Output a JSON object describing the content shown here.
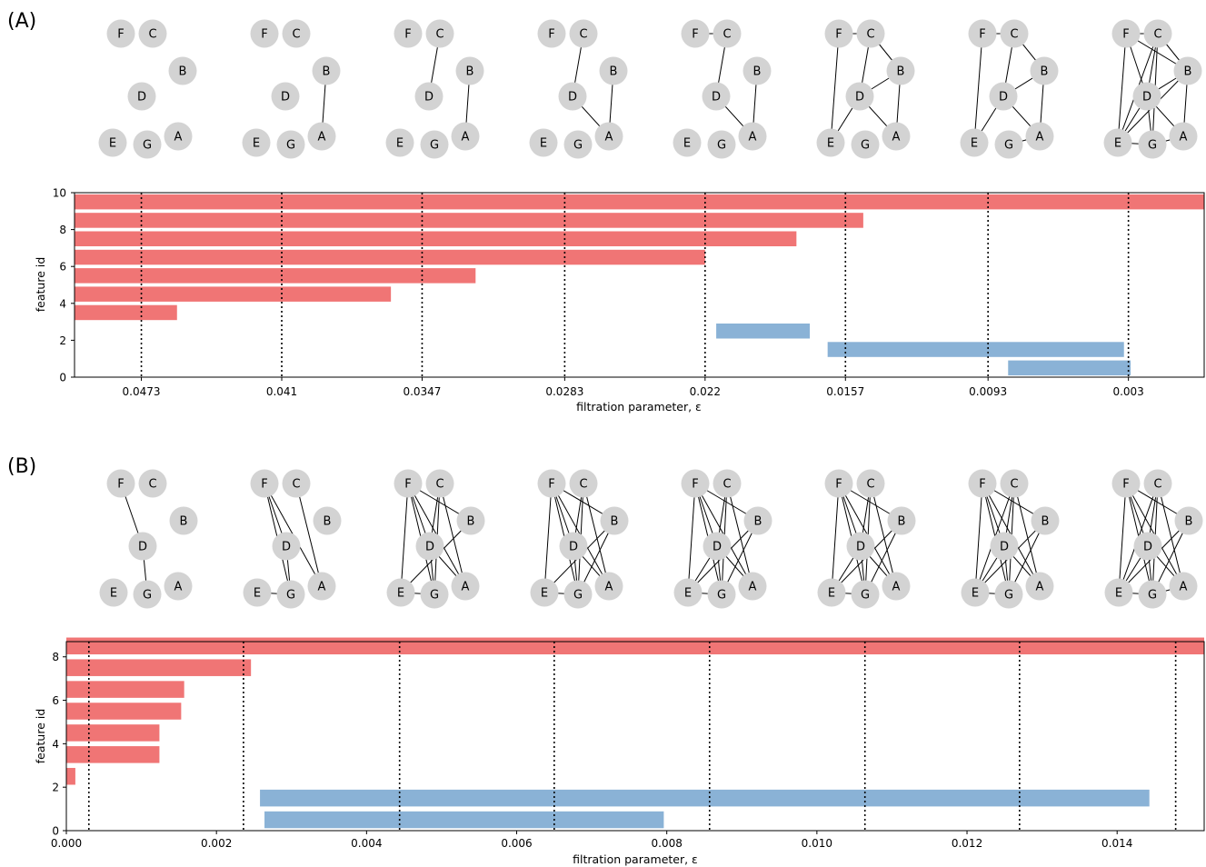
{
  "colors": {
    "h0": "#f07575",
    "h1": "#8ab2d6",
    "node": "#d3d3d3"
  },
  "chart_data": [
    {
      "panel": "(A)",
      "type": "bar",
      "orientation": "horizontal",
      "xlabel": "filtration parameter, ε",
      "ylabel": "feature id",
      "x_ticks": [
        {
          "pos": 0.0473,
          "label": "0.0473"
        },
        {
          "pos": 0.041,
          "label": "0.041"
        },
        {
          "pos": 0.0347,
          "label": "0.0347"
        },
        {
          "pos": 0.0283,
          "label": "0.0283"
        },
        {
          "pos": 0.022,
          "label": "0.022"
        },
        {
          "pos": 0.0157,
          "label": "0.0157"
        },
        {
          "pos": 0.0093,
          "label": "0.0093"
        },
        {
          "pos": 0.003,
          "label": "0.003"
        }
      ],
      "xlim": [
        0.0503,
        -0.0004
      ],
      "ylim": [
        0,
        10
      ],
      "y_ticks": [
        0,
        2,
        4,
        6,
        8,
        10
      ],
      "grid": false,
      "vlines": [
        0.0473,
        0.041,
        0.0347,
        0.0283,
        0.022,
        0.0157,
        0.0093,
        0.003
      ],
      "bars": [
        {
          "id": 9,
          "start": 0.0503,
          "end": -0.0004,
          "dim": 0
        },
        {
          "id": 8,
          "start": 0.0503,
          "end": 0.0149,
          "dim": 0
        },
        {
          "id": 7,
          "start": 0.0503,
          "end": 0.0179,
          "dim": 0
        },
        {
          "id": 6,
          "start": 0.0503,
          "end": 0.022,
          "dim": 0
        },
        {
          "id": 5,
          "start": 0.0503,
          "end": 0.0323,
          "dim": 0
        },
        {
          "id": 4,
          "start": 0.0503,
          "end": 0.0361,
          "dim": 0
        },
        {
          "id": 3,
          "start": 0.0503,
          "end": 0.0457,
          "dim": 0
        },
        {
          "id": 2,
          "start": 0.0215,
          "end": 0.0173,
          "dim": 1
        },
        {
          "id": 1,
          "start": 0.0165,
          "end": 0.0032,
          "dim": 1
        },
        {
          "id": 0,
          "start": 0.0084,
          "end": 0.0029,
          "dim": 1
        }
      ],
      "graphs": [
        {
          "edges": []
        },
        {
          "edges": [
            [
              "B",
              "A"
            ]
          ]
        },
        {
          "edges": [
            [
              "C",
              "D"
            ],
            [
              "B",
              "A"
            ]
          ]
        },
        {
          "edges": [
            [
              "C",
              "D"
            ],
            [
              "B",
              "A"
            ],
            [
              "D",
              "A"
            ]
          ]
        },
        {
          "edges": [
            [
              "F",
              "C"
            ],
            [
              "C",
              "D"
            ],
            [
              "B",
              "A"
            ],
            [
              "D",
              "A"
            ]
          ]
        },
        {
          "edges": [
            [
              "F",
              "C"
            ],
            [
              "C",
              "D"
            ],
            [
              "B",
              "A"
            ],
            [
              "D",
              "A"
            ],
            [
              "F",
              "E"
            ],
            [
              "D",
              "E"
            ],
            [
              "C",
              "B"
            ],
            [
              "D",
              "B"
            ]
          ]
        },
        {
          "edges": [
            [
              "F",
              "C"
            ],
            [
              "C",
              "D"
            ],
            [
              "B",
              "A"
            ],
            [
              "D",
              "A"
            ],
            [
              "F",
              "E"
            ],
            [
              "D",
              "E"
            ],
            [
              "C",
              "B"
            ],
            [
              "D",
              "B"
            ],
            [
              "G",
              "A"
            ]
          ]
        },
        {
          "edges": [
            [
              "F",
              "C"
            ],
            [
              "C",
              "D"
            ],
            [
              "B",
              "A"
            ],
            [
              "D",
              "A"
            ],
            [
              "F",
              "E"
            ],
            [
              "D",
              "E"
            ],
            [
              "C",
              "B"
            ],
            [
              "D",
              "B"
            ],
            [
              "G",
              "A"
            ],
            [
              "E",
              "G"
            ],
            [
              "F",
              "B"
            ],
            [
              "C",
              "E"
            ],
            [
              "C",
              "G"
            ],
            [
              "F",
              "D"
            ],
            [
              "E",
              "B"
            ],
            [
              "D",
              "G"
            ]
          ]
        }
      ]
    },
    {
      "panel": "(B)",
      "type": "bar",
      "orientation": "horizontal",
      "xlabel": "filtration parameter, ε",
      "ylabel": "feature id",
      "x_ticks": [
        {
          "pos": 0.0,
          "label": "0.000"
        },
        {
          "pos": 0.002,
          "label": "0.002"
        },
        {
          "pos": 0.004,
          "label": "0.004"
        },
        {
          "pos": 0.006,
          "label": "0.006"
        },
        {
          "pos": 0.008,
          "label": "0.008"
        },
        {
          "pos": 0.01,
          "label": "0.010"
        },
        {
          "pos": 0.012,
          "label": "0.012"
        },
        {
          "pos": 0.014,
          "label": "0.014"
        }
      ],
      "xlim": [
        0,
        0.01516
      ],
      "ylim": [
        0,
        8.7
      ],
      "y_ticks": [
        0,
        2,
        4,
        6,
        8
      ],
      "grid": false,
      "vlines": [
        0.0003,
        0.00236,
        0.00444,
        0.0065,
        0.00857,
        0.01064,
        0.0127,
        0.01478
      ],
      "bars": [
        {
          "id": 8,
          "start": 0,
          "end": 0.01516,
          "dim": 0
        },
        {
          "id": 7,
          "start": 0,
          "end": 0.00246,
          "dim": 0
        },
        {
          "id": 6,
          "start": 0,
          "end": 0.00157,
          "dim": 0
        },
        {
          "id": 5,
          "start": 0,
          "end": 0.00153,
          "dim": 0
        },
        {
          "id": 4,
          "start": 0,
          "end": 0.00124,
          "dim": 0
        },
        {
          "id": 3,
          "start": 0,
          "end": 0.00124,
          "dim": 0
        },
        {
          "id": 2,
          "start": 0,
          "end": 0.00012,
          "dim": 0
        },
        {
          "id": 1,
          "start": 0.00258,
          "end": 0.01443,
          "dim": 1
        },
        {
          "id": 0,
          "start": 0.00264,
          "end": 0.00796,
          "dim": 1
        }
      ],
      "graphs": [
        {
          "edges": [
            [
              "F",
              "D"
            ],
            [
              "D",
              "G"
            ]
          ]
        },
        {
          "edges": [
            [
              "F",
              "D"
            ],
            [
              "D",
              "G"
            ],
            [
              "F",
              "G"
            ],
            [
              "C",
              "A"
            ],
            [
              "E",
              "G"
            ],
            [
              "F",
              "A"
            ]
          ]
        },
        {
          "edges": [
            [
              "F",
              "D"
            ],
            [
              "D",
              "G"
            ],
            [
              "F",
              "G"
            ],
            [
              "C",
              "A"
            ],
            [
              "E",
              "G"
            ],
            [
              "F",
              "A"
            ],
            [
              "C",
              "D"
            ],
            [
              "F",
              "B"
            ],
            [
              "C",
              "G"
            ],
            [
              "E",
              "B"
            ],
            [
              "D",
              "A"
            ],
            [
              "F",
              "E"
            ]
          ]
        },
        {
          "edges": [
            [
              "F",
              "D"
            ],
            [
              "D",
              "G"
            ],
            [
              "F",
              "G"
            ],
            [
              "C",
              "A"
            ],
            [
              "E",
              "G"
            ],
            [
              "F",
              "A"
            ],
            [
              "C",
              "D"
            ],
            [
              "F",
              "B"
            ],
            [
              "C",
              "G"
            ],
            [
              "E",
              "B"
            ],
            [
              "D",
              "A"
            ],
            [
              "F",
              "E"
            ],
            [
              "G",
              "B"
            ]
          ]
        },
        {
          "edges": [
            [
              "F",
              "D"
            ],
            [
              "D",
              "G"
            ],
            [
              "F",
              "G"
            ],
            [
              "C",
              "A"
            ],
            [
              "E",
              "G"
            ],
            [
              "F",
              "A"
            ],
            [
              "C",
              "D"
            ],
            [
              "F",
              "B"
            ],
            [
              "C",
              "G"
            ],
            [
              "E",
              "B"
            ],
            [
              "D",
              "A"
            ],
            [
              "F",
              "E"
            ],
            [
              "G",
              "B"
            ],
            [
              "D",
              "E"
            ]
          ]
        },
        {
          "edges": [
            [
              "F",
              "D"
            ],
            [
              "D",
              "G"
            ],
            [
              "F",
              "G"
            ],
            [
              "C",
              "A"
            ],
            [
              "E",
              "G"
            ],
            [
              "F",
              "A"
            ],
            [
              "C",
              "D"
            ],
            [
              "F",
              "B"
            ],
            [
              "C",
              "G"
            ],
            [
              "E",
              "B"
            ],
            [
              "D",
              "A"
            ],
            [
              "F",
              "E"
            ],
            [
              "G",
              "B"
            ],
            [
              "D",
              "E"
            ]
          ]
        },
        {
          "edges": [
            [
              "F",
              "D"
            ],
            [
              "D",
              "G"
            ],
            [
              "F",
              "G"
            ],
            [
              "C",
              "A"
            ],
            [
              "E",
              "G"
            ],
            [
              "F",
              "A"
            ],
            [
              "C",
              "D"
            ],
            [
              "F",
              "B"
            ],
            [
              "C",
              "G"
            ],
            [
              "E",
              "B"
            ],
            [
              "D",
              "A"
            ],
            [
              "F",
              "E"
            ],
            [
              "G",
              "B"
            ],
            [
              "D",
              "E"
            ],
            [
              "C",
              "E"
            ]
          ]
        },
        {
          "edges": [
            [
              "F",
              "D"
            ],
            [
              "D",
              "G"
            ],
            [
              "F",
              "G"
            ],
            [
              "C",
              "A"
            ],
            [
              "E",
              "G"
            ],
            [
              "F",
              "A"
            ],
            [
              "C",
              "D"
            ],
            [
              "F",
              "B"
            ],
            [
              "C",
              "G"
            ],
            [
              "E",
              "B"
            ],
            [
              "D",
              "A"
            ],
            [
              "F",
              "E"
            ],
            [
              "G",
              "B"
            ],
            [
              "D",
              "E"
            ],
            [
              "C",
              "E"
            ],
            [
              "G",
              "A"
            ]
          ]
        }
      ]
    }
  ]
}
